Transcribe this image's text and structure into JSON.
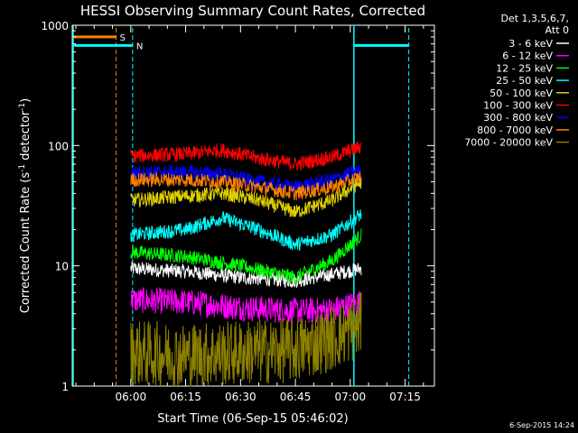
{
  "chart_data": {
    "type": "line",
    "title": "HESSI Observing Summary Count Rates, Corrected",
    "xlabel": "Start Time (06-Sep-15 05:46:02)",
    "ylabel_main": "Corrected Count Rate (s",
    "ylabel_sup1": "-1",
    "ylabel_mid": " detector",
    "ylabel_sup2": "-1",
    "ylabel_end": ")",
    "y_scale": "log",
    "ylim": [
      1,
      1000
    ],
    "xlim_minutes": [
      -16,
      83
    ],
    "x_tick_labels": [
      "06:00",
      "06:15",
      "06:30",
      "06:45",
      "07:00",
      "07:15"
    ],
    "x_tick_minutes": [
      0,
      15,
      30,
      45,
      60,
      75
    ],
    "y_tick_labels": [
      "1",
      "10",
      "100",
      "1000"
    ],
    "y_tick_values": [
      1,
      10,
      100,
      1000
    ],
    "legend_header": [
      "Det 1,3,5,6,7,",
      "Att 0"
    ],
    "series": [
      {
        "name": "3 - 6 keV",
        "color": "#ffffff",
        "values_at_x": [
          [
            0,
            9.5
          ],
          [
            15,
            9
          ],
          [
            30,
            8
          ],
          [
            45,
            7.5
          ],
          [
            55,
            8.5
          ],
          [
            63,
            9.5
          ]
        ]
      },
      {
        "name": "6 - 12 keV",
        "color": "#ff00ff",
        "values_at_x": [
          [
            0,
            5.2
          ],
          [
            15,
            5
          ],
          [
            30,
            4.5
          ],
          [
            45,
            4.2
          ],
          [
            55,
            4.3
          ],
          [
            63,
            5
          ]
        ]
      },
      {
        "name": "12 - 25 keV",
        "color": "#00ff00",
        "values_at_x": [
          [
            0,
            13
          ],
          [
            15,
            12
          ],
          [
            30,
            10
          ],
          [
            45,
            8
          ],
          [
            55,
            11
          ],
          [
            63,
            18
          ]
        ]
      },
      {
        "name": "25 - 50 keV",
        "color": "#00ffff",
        "values_at_x": [
          [
            0,
            18
          ],
          [
            15,
            20
          ],
          [
            25,
            25
          ],
          [
            35,
            20
          ],
          [
            45,
            15
          ],
          [
            55,
            18
          ],
          [
            63,
            27
          ]
        ]
      },
      {
        "name": "50 - 100 keV",
        "color": "#e0d000",
        "values_at_x": [
          [
            0,
            35
          ],
          [
            15,
            38
          ],
          [
            25,
            40
          ],
          [
            35,
            35
          ],
          [
            45,
            28
          ],
          [
            55,
            35
          ],
          [
            63,
            50
          ]
        ]
      },
      {
        "name": "100 - 300 keV",
        "color": "#ff0000",
        "values_at_x": [
          [
            0,
            82
          ],
          [
            15,
            85
          ],
          [
            25,
            92
          ],
          [
            35,
            78
          ],
          [
            45,
            70
          ],
          [
            55,
            80
          ],
          [
            63,
            98
          ]
        ]
      },
      {
        "name": "300 - 800 keV",
        "color": "#0000ff",
        "values_at_x": [
          [
            0,
            60
          ],
          [
            15,
            60
          ],
          [
            25,
            58
          ],
          [
            35,
            50
          ],
          [
            45,
            45
          ],
          [
            55,
            52
          ],
          [
            63,
            63
          ]
        ]
      },
      {
        "name": "800 - 7000 keV",
        "color": "#ff8000",
        "values_at_x": [
          [
            0,
            52
          ],
          [
            15,
            52
          ],
          [
            25,
            50
          ],
          [
            35,
            45
          ],
          [
            45,
            40
          ],
          [
            55,
            45
          ],
          [
            63,
            55
          ]
        ]
      },
      {
        "name": "7000 - 20000 keV",
        "color": "#8b8000",
        "values_at_x": [
          [
            0,
            1.9
          ],
          [
            15,
            1.8
          ],
          [
            30,
            1.9
          ],
          [
            45,
            2
          ],
          [
            55,
            2.5
          ],
          [
            63,
            3.2
          ]
        ]
      }
    ],
    "flags": [
      {
        "label": "S",
        "color": "#ff8000",
        "level": 800
      },
      {
        "label": "N",
        "color": "#00ffff",
        "level": 680
      }
    ],
    "timestamp": "6-Sep-2015 14:24",
    "grid": false,
    "legend_placement": "right"
  }
}
